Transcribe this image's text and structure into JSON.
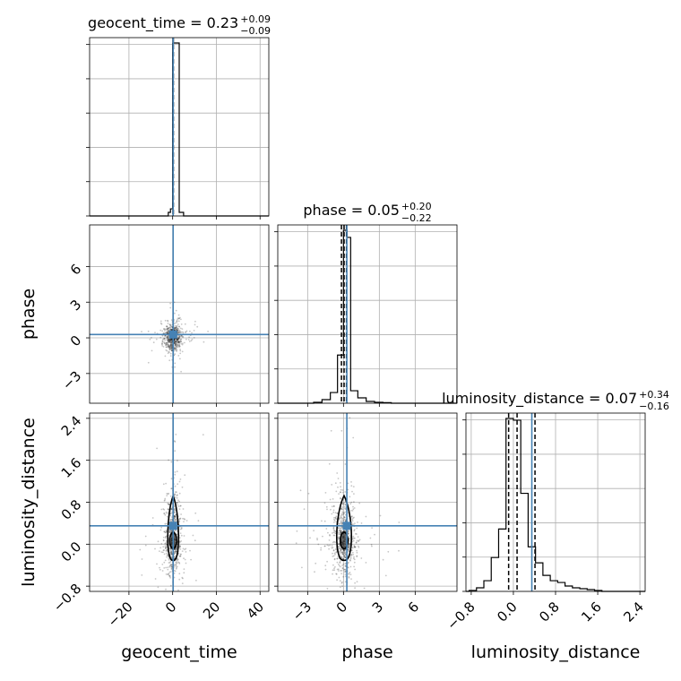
{
  "chart_data": {
    "type": "corner",
    "parameters": [
      {
        "name": "geocent_time",
        "axis_label": "geocent_time",
        "title_main": "geocent_time = 0.23",
        "title_plus": "+0.09",
        "title_minus": "−0.09",
        "range": [
          -38,
          44
        ],
        "ticks": [
          -20,
          0,
          20,
          40
        ],
        "tick_labels": [
          "−20",
          "0",
          "20",
          "40"
        ],
        "truth": 0.23,
        "quantiles": [
          0.14,
          0.23,
          0.32
        ],
        "hist_bins": [
          -38,
          -2,
          -1,
          0,
          1,
          3,
          5,
          44
        ],
        "hist_counts": [
          0,
          0.02,
          0.04,
          0.97,
          0.97,
          0.02,
          0
        ]
      },
      {
        "name": "phase",
        "axis_label": "phase",
        "title_main": "phase = 0.05",
        "title_plus": "+0.20",
        "title_minus": "−0.22",
        "range": [
          -5.5,
          9.5
        ],
        "ticks": [
          -3,
          0,
          3,
          6
        ],
        "tick_labels": [
          "−3",
          "0",
          "3",
          "6"
        ],
        "truth": 0.28,
        "quantiles": [
          -0.17,
          0.05,
          0.25
        ],
        "hist_bins": [
          -5.5,
          -2.5,
          -1.8,
          -1.1,
          -0.5,
          0.0,
          0.3,
          0.6,
          1.2,
          1.9,
          2.6,
          3.3,
          4.0,
          9.5
        ],
        "hist_counts": [
          0,
          0.005,
          0.02,
          0.06,
          0.27,
          0.97,
          0.93,
          0.07,
          0.03,
          0.01,
          0.005,
          0.003,
          0
        ]
      },
      {
        "name": "luminosity_distance",
        "axis_label": "luminosity_distance",
        "title_main": "luminosity_distance = 0.07",
        "title_plus": "+0.34",
        "title_minus": "−0.16",
        "range": [
          -0.9,
          2.5
        ],
        "ticks": [
          -0.8,
          0.0,
          0.8,
          1.6,
          2.4
        ],
        "tick_labels": [
          "−0.8",
          "0.0",
          "0.8",
          "1.6",
          "2.4"
        ],
        "truth": 0.35,
        "quantiles": [
          -0.09,
          0.07,
          0.41
        ],
        "hist_bins": [
          -0.9,
          -0.84,
          -0.7,
          -0.56,
          -0.42,
          -0.28,
          -0.14,
          0.0,
          0.14,
          0.28,
          0.42,
          0.56,
          0.7,
          0.84,
          0.98,
          1.12,
          1.26,
          1.4,
          1.54,
          1.68,
          2.5
        ],
        "hist_counts": [
          0,
          0.005,
          0.02,
          0.06,
          0.19,
          0.35,
          0.97,
          0.96,
          0.55,
          0.25,
          0.16,
          0.09,
          0.06,
          0.05,
          0.03,
          0.02,
          0.015,
          0.01,
          0.005,
          0
        ]
      }
    ],
    "truth_color": "#4682b4",
    "scatter_spread": {
      "geocent_time": 2.0,
      "phase": 0.55,
      "luminosity_distance": 0.32
    },
    "grid": true
  }
}
